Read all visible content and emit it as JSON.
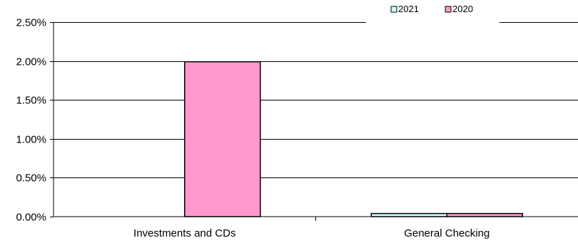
{
  "chart_data": {
    "type": "bar",
    "categories": [
      "Investments and CDs",
      "General Checking"
    ],
    "series": [
      {
        "name": "2021",
        "values": [
          0.0,
          0.04
        ],
        "color": "#ccffff"
      },
      {
        "name": "2020",
        "values": [
          1.99,
          0.04
        ],
        "color": "#ff99cc"
      }
    ],
    "ylim": [
      0,
      2.5
    ],
    "yticks": [
      0,
      0.5,
      1.0,
      1.5,
      2.0,
      2.5
    ],
    "ytick_labels": [
      "0.00%",
      "0.50%",
      "1.00%",
      "1.50%",
      "2.00%",
      "2.50%"
    ],
    "unit": "%",
    "grid": true,
    "legend_position": "top-right",
    "legend_order": [
      "2021",
      "2020"
    ]
  }
}
